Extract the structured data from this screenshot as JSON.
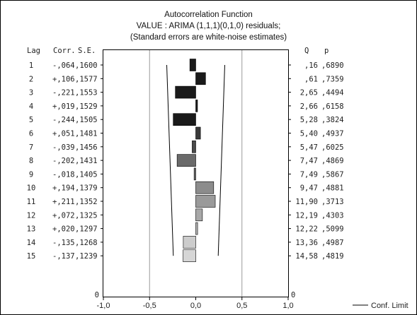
{
  "chart_data": {
    "type": "bar",
    "title_lines": [
      "Autocorrelation Function",
      "VALUE   : ARIMA (1,1,1)(0,1,0) residuals;",
      "(Standard errors are white-noise estimates)"
    ],
    "column_headers": {
      "lag": "Lag",
      "corr": "Corr.",
      "se": "S.E.",
      "q": "Q",
      "p": "p"
    },
    "rows": [
      {
        "lag": "1",
        "corr_text": "-,064",
        "se_text": ",1600",
        "q_text": ",16",
        "p_text": ",6890",
        "corr": -0.064
      },
      {
        "lag": "2",
        "corr_text": "+,106",
        "se_text": ",1577",
        "q_text": ",61",
        "p_text": ",7359",
        "corr": 0.106
      },
      {
        "lag": "3",
        "corr_text": "-,221",
        "se_text": ",1553",
        "q_text": "2,65",
        "p_text": ",4494",
        "corr": -0.221
      },
      {
        "lag": "4",
        "corr_text": "+,019",
        "se_text": ",1529",
        "q_text": "2,66",
        "p_text": ",6158",
        "corr": 0.019
      },
      {
        "lag": "5",
        "corr_text": "-,244",
        "se_text": ",1505",
        "q_text": "5,28",
        "p_text": ",3824",
        "corr": -0.244
      },
      {
        "lag": "6",
        "corr_text": "+,051",
        "se_text": ",1481",
        "q_text": "5,40",
        "p_text": ",4937",
        "corr": 0.051
      },
      {
        "lag": "7",
        "corr_text": "-,039",
        "se_text": ",1456",
        "q_text": "5,47",
        "p_text": ",6025",
        "corr": -0.039
      },
      {
        "lag": "8",
        "corr_text": "-,202",
        "se_text": ",1431",
        "q_text": "7,47",
        "p_text": ",4869",
        "corr": -0.202
      },
      {
        "lag": "9",
        "corr_text": "-,018",
        "se_text": ",1405",
        "q_text": "7,49",
        "p_text": ",5867",
        "corr": -0.018
      },
      {
        "lag": "10",
        "corr_text": "+,194",
        "se_text": ",1379",
        "q_text": "9,47",
        "p_text": ",4881",
        "corr": 0.194
      },
      {
        "lag": "11",
        "corr_text": "+,211",
        "se_text": ",1352",
        "q_text": "11,90",
        "p_text": ",3713",
        "corr": 0.211
      },
      {
        "lag": "12",
        "corr_text": "+,072",
        "se_text": ",1325",
        "q_text": "12,19",
        "p_text": ",4303",
        "corr": 0.072
      },
      {
        "lag": "13",
        "corr_text": "+,020",
        "se_text": ",1297",
        "q_text": "12,22",
        "p_text": ",5099",
        "corr": 0.02
      },
      {
        "lag": "14",
        "corr_text": "-,135",
        "se_text": ",1268",
        "q_text": "13,36",
        "p_text": ",4987",
        "corr": -0.135
      },
      {
        "lag": "15",
        "corr_text": "-,137",
        "se_text": ",1239",
        "q_text": "14,58",
        "p_text": ",4819",
        "corr": -0.137
      }
    ],
    "bar_colors": [
      "#1a1a1a",
      "#1a1a1a",
      "#1a1a1a",
      "#1a1a1a",
      "#1a1a1a",
      "#3a3a3a",
      "#4a4a4a",
      "#6a6a6a",
      "#6a6a6a",
      "#8c8c8c",
      "#9a9a9a",
      "#a8a8a8",
      "#b4b4b4",
      "#cccccc",
      "#d6d6d6"
    ],
    "conf_limits": [
      {
        "lag": 1,
        "value": 0.314
      },
      {
        "lag": 15,
        "value": 0.243
      }
    ],
    "xlim": [
      -1.0,
      1.0
    ],
    "x_ticks": [
      "-1,0",
      "-0,5",
      "0,0",
      "0,5",
      "1,0"
    ],
    "x_tick_values": [
      -1.0,
      -0.5,
      0.0,
      0.5,
      1.0
    ],
    "x_gridlines": [
      -0.5,
      0.5
    ],
    "zero_row_labels": {
      "left": "0",
      "right": "0"
    },
    "legend": {
      "label": "Conf. Limit",
      "placement": "bottom-right"
    }
  }
}
